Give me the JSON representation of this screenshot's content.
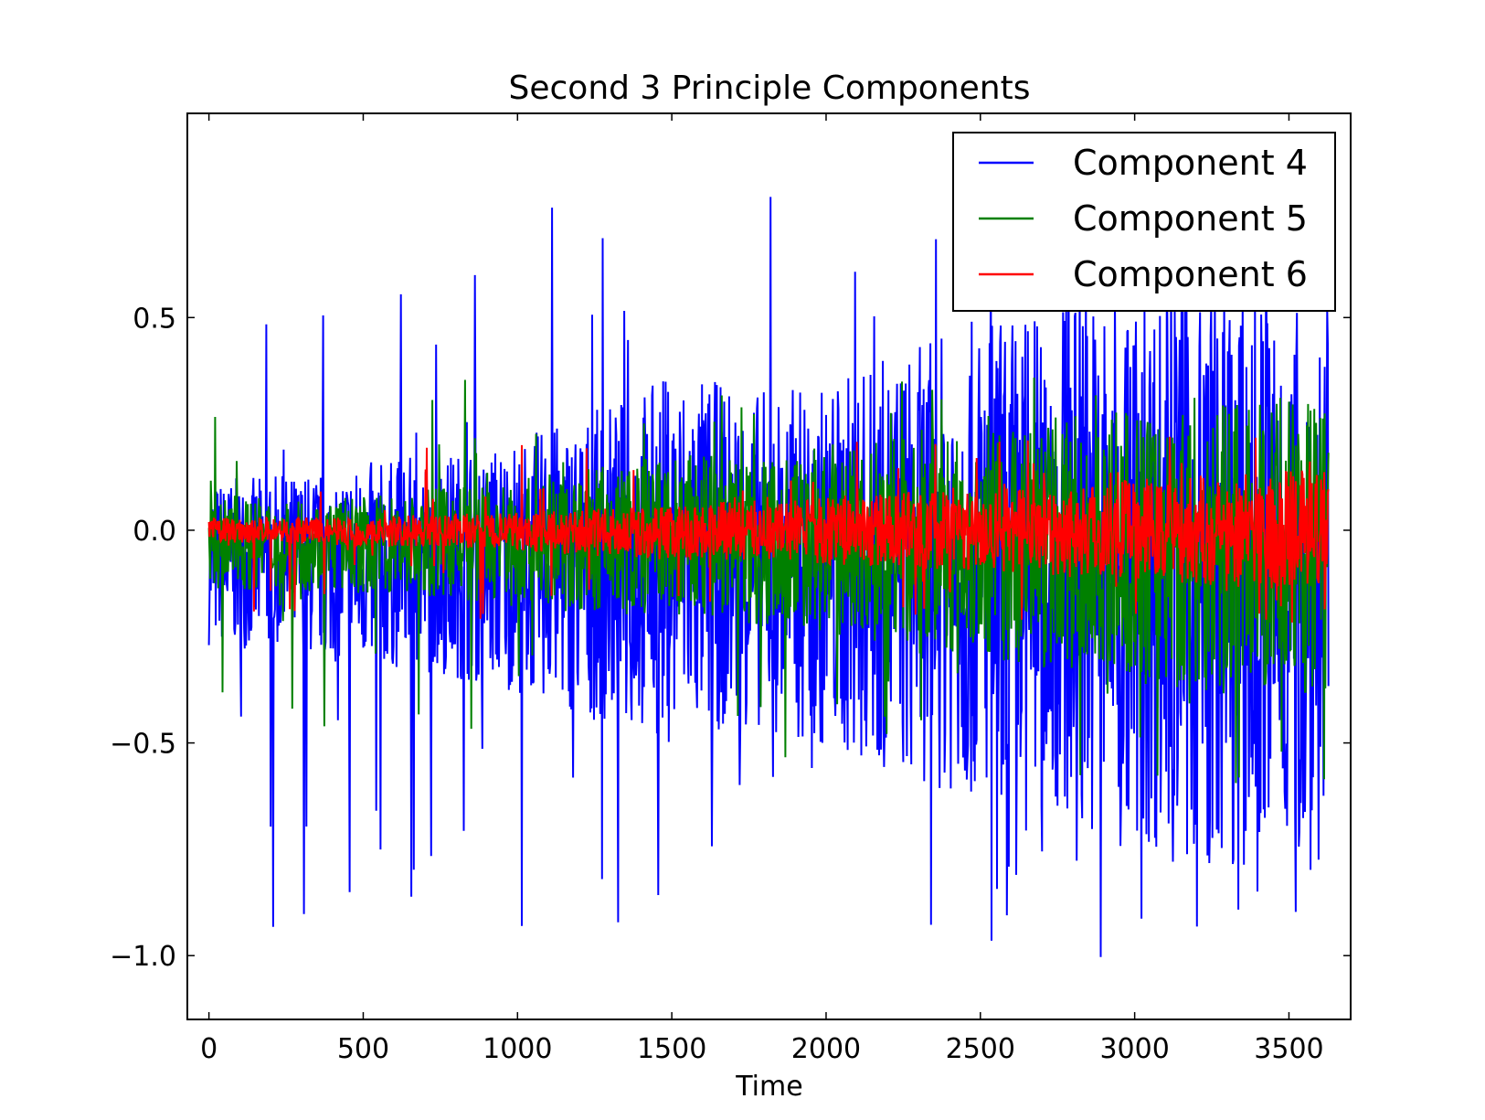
{
  "chart_data": {
    "type": "line",
    "title": "Second 3 Principle Components",
    "xlabel": "Time",
    "ylabel": "",
    "xlim": [
      -70,
      3700
    ],
    "ylim": [
      -1.15,
      0.98
    ],
    "xticks": [
      0,
      500,
      1000,
      1500,
      2000,
      2500,
      3000,
      3500
    ],
    "xtick_labels": [
      "0",
      "500",
      "1000",
      "1500",
      "2000",
      "2500",
      "3000",
      "3500"
    ],
    "yticks": [
      0.5,
      0.0,
      -0.5,
      -1.0
    ],
    "ytick_labels": [
      "0.5",
      "0.0",
      "−0.5",
      "−1.0"
    ],
    "legend_position": "top-right",
    "grid": false,
    "n_points": 3630,
    "series": [
      {
        "name": "Component 4",
        "color": "#0000ff",
        "x": [
          0,
          250,
          500,
          750,
          1000,
          1250,
          1500,
          1750,
          2000,
          2250,
          2500,
          2750,
          3000,
          3250,
          3500,
          3630
        ],
        "upper": [
          0.12,
          0.13,
          0.16,
          0.18,
          0.22,
          0.28,
          0.38,
          0.33,
          0.35,
          0.42,
          0.5,
          0.55,
          0.58,
          0.6,
          0.55,
          0.52
        ],
        "lower": [
          -0.27,
          -0.29,
          -0.32,
          -0.34,
          -0.38,
          -0.45,
          -0.5,
          -0.46,
          -0.52,
          -0.58,
          -0.64,
          -0.68,
          -0.74,
          -0.8,
          -0.8,
          -0.8
        ],
        "max": 0.95,
        "min": -1.14
      },
      {
        "name": "Component 5",
        "color": "#008000",
        "x": [
          0,
          250,
          500,
          750,
          1000,
          1250,
          1500,
          1750,
          2000,
          2250,
          2500,
          2750,
          3000,
          3250,
          3500,
          3630
        ],
        "upper": [
          0.07,
          0.08,
          0.08,
          0.1,
          0.12,
          0.15,
          0.18,
          0.18,
          0.2,
          0.22,
          0.24,
          0.27,
          0.28,
          0.3,
          0.3,
          0.3
        ],
        "lower": [
          -0.14,
          -0.14,
          -0.15,
          -0.16,
          -0.18,
          -0.2,
          -0.22,
          -0.22,
          -0.25,
          -0.27,
          -0.3,
          -0.33,
          -0.36,
          -0.38,
          -0.38,
          -0.38
        ],
        "max": 0.42,
        "min": -0.65
      },
      {
        "name": "Component 6",
        "color": "#ff0000",
        "x": [
          0,
          250,
          500,
          750,
          1000,
          1250,
          1500,
          1750,
          2000,
          2250,
          2500,
          2750,
          3000,
          3250,
          3500,
          3630
        ],
        "upper": [
          0.03,
          0.03,
          0.03,
          0.04,
          0.04,
          0.05,
          0.06,
          0.07,
          0.08,
          0.09,
          0.1,
          0.11,
          0.12,
          0.13,
          0.14,
          0.14
        ],
        "lower": [
          -0.03,
          -0.03,
          -0.04,
          -0.04,
          -0.05,
          -0.06,
          -0.07,
          -0.07,
          -0.08,
          -0.09,
          -0.1,
          -0.11,
          -0.12,
          -0.13,
          -0.14,
          -0.14
        ],
        "max": 0.25,
        "min": -0.25
      }
    ]
  }
}
